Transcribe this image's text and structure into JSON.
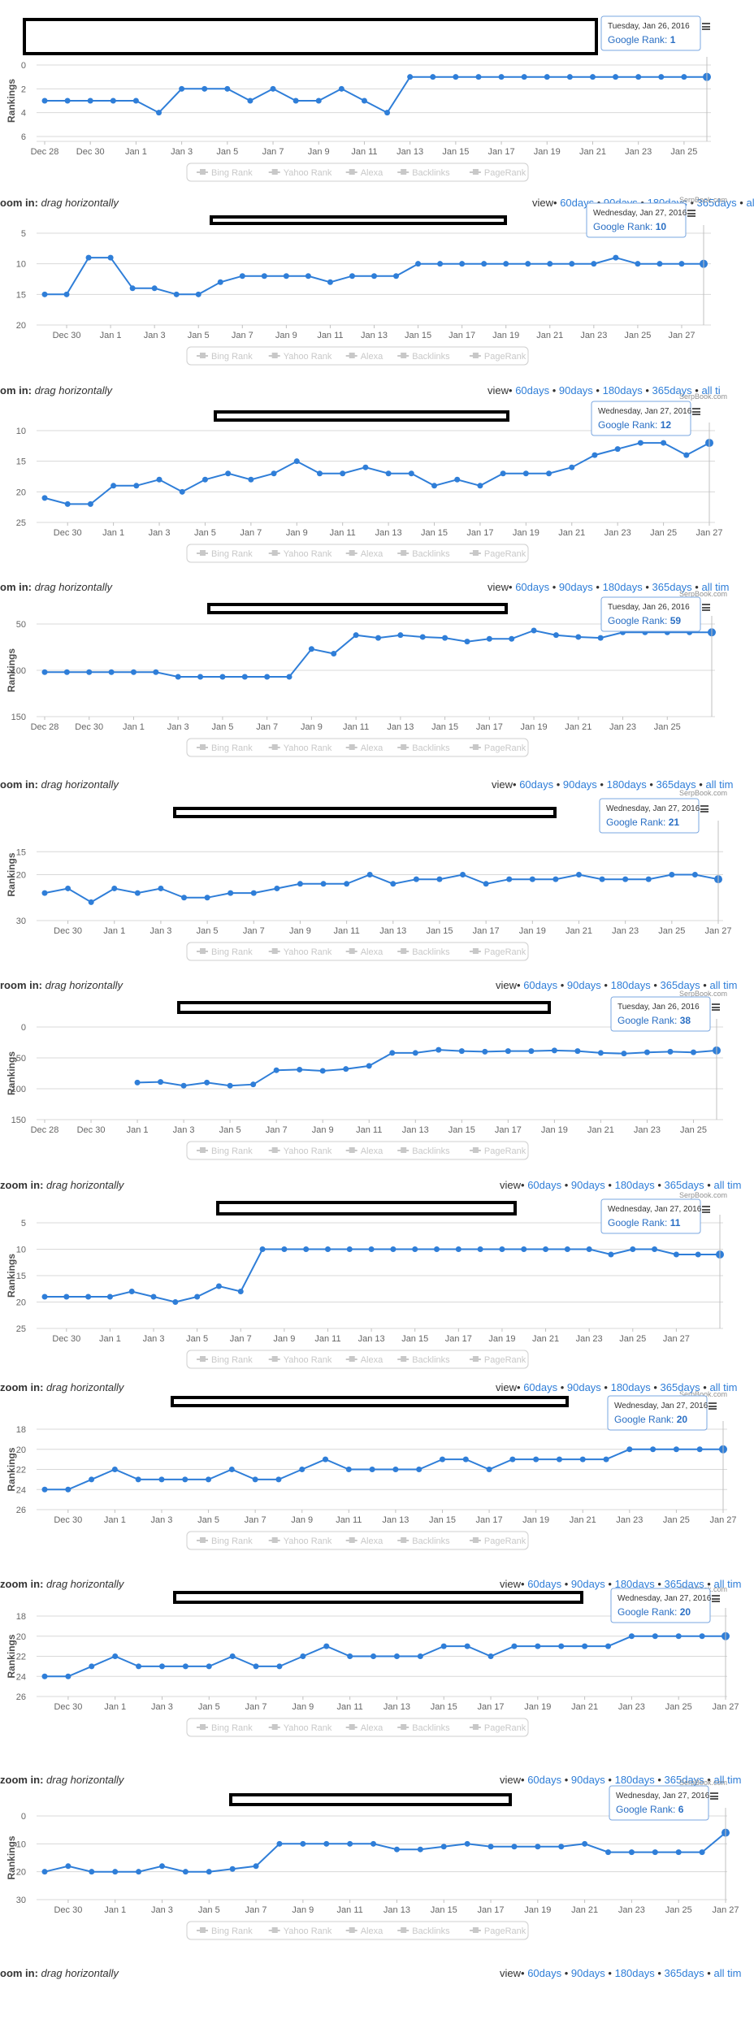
{
  "chart_data": [
    {
      "type": "line",
      "title": "",
      "yaxis_label": "Rankings",
      "ytick_labels": [
        "0",
        "2",
        "4",
        "6"
      ],
      "ylim": [
        0,
        6
      ],
      "reversed": true,
      "xtick_labels": [
        "Dec 28",
        "Dec 30",
        "Jan 1",
        "Jan 3",
        "Jan 5",
        "Jan 7",
        "Jan 9",
        "Jan 11",
        "Jan 13",
        "Jan 15",
        "Jan 17",
        "Jan 19",
        "Jan 21",
        "Jan 23",
        "Jan 25"
      ],
      "x_start": "Dec 28",
      "series": [
        {
          "name": "Google Rank",
          "values": [
            3,
            3,
            3,
            3,
            3,
            4,
            2,
            2,
            2,
            3,
            2,
            3,
            3,
            2,
            3,
            4,
            1,
            1,
            1,
            1,
            1,
            1,
            1,
            1,
            1,
            1,
            1,
            1,
            1,
            1
          ]
        }
      ],
      "tooltip": {
        "date": "Tuesday, Jan 26, 2016",
        "label": "Google Rank:",
        "value": "1"
      },
      "legend": [
        "Bing Rank",
        "Yahoo Rank",
        "Alexa",
        "Backlinks",
        "PageRank"
      ],
      "legend_position": "bottom",
      "credit": ""
    },
    {
      "type": "line",
      "title": "",
      "yaxis_label": "",
      "ytick_labels": [
        "5",
        "10",
        "15",
        "20"
      ],
      "ylim": [
        5,
        20
      ],
      "reversed": true,
      "xtick_labels": [
        "Dec 30",
        "Jan 1",
        "Jan 3",
        "Jan 5",
        "Jan 7",
        "Jan 9",
        "Jan 11",
        "Jan 13",
        "Jan 15",
        "Jan 17",
        "Jan 19",
        "Jan 21",
        "Jan 23",
        "Jan 25",
        "Jan 27"
      ],
      "x_start": "Dec 29",
      "series": [
        {
          "name": "Google Rank",
          "values": [
            15,
            15,
            9,
            9,
            14,
            14,
            15,
            15,
            13,
            12,
            12,
            12,
            12,
            13,
            12,
            12,
            12,
            10,
            10,
            10,
            10,
            10,
            10,
            10,
            10,
            10,
            9,
            10,
            10,
            10,
            10
          ]
        }
      ],
      "tooltip": {
        "date": "Wednesday, Jan 27, 2016",
        "label": "Google Rank:",
        "value": "10"
      },
      "legend": [
        "Bing Rank",
        "Yahoo Rank",
        "Alexa",
        "Backlinks",
        "PageRank"
      ],
      "legend_position": "bottom",
      "credit": "SerpBook.com"
    },
    {
      "type": "line",
      "title": "",
      "yaxis_label": "",
      "ytick_labels": [
        "10",
        "15",
        "20",
        "25"
      ],
      "ylim": [
        10,
        25
      ],
      "reversed": true,
      "xtick_labels": [
        "Dec 30",
        "Jan 1",
        "Jan 3",
        "Jan 5",
        "Jan 7",
        "Jan 9",
        "Jan 11",
        "Jan 13",
        "Jan 15",
        "Jan 17",
        "Jan 19",
        "Jan 21",
        "Jan 23",
        "Jan 25",
        "Jan 27"
      ],
      "x_start": "Dec 29",
      "series": [
        {
          "name": "Google Rank",
          "values": [
            21,
            22,
            22,
            19,
            19,
            18,
            20,
            18,
            17,
            18,
            17,
            15,
            17,
            17,
            16,
            17,
            17,
            19,
            18,
            19,
            17,
            17,
            17,
            16,
            14,
            13,
            12,
            12,
            14,
            12
          ]
        }
      ],
      "tooltip": {
        "date": "Wednesday, Jan 27, 2016",
        "label": "Google Rank:",
        "value": "12"
      },
      "legend": [
        "Bing Rank",
        "Yahoo Rank",
        "Alexa",
        "Backlinks",
        "PageRank"
      ],
      "legend_position": "bottom",
      "credit": "SerpBook.com"
    },
    {
      "type": "line",
      "title": "",
      "yaxis_label": "Rankings",
      "ytick_labels": [
        "50",
        "100",
        "150"
      ],
      "ylim": [
        50,
        150
      ],
      "reversed": true,
      "xtick_labels": [
        "Dec 28",
        "Dec 30",
        "Jan 1",
        "Jan 3",
        "Jan 5",
        "Jan 7",
        "Jan 9",
        "Jan 11",
        "Jan 13",
        "Jan 15",
        "Jan 17",
        "Jan 19",
        "Jan 21",
        "Jan 23",
        "Jan 25"
      ],
      "x_start": "Dec 28",
      "series": [
        {
          "name": "Google Rank",
          "values": [
            102,
            102,
            102,
            102,
            102,
            102,
            107,
            107,
            107,
            107,
            107,
            107,
            77,
            82,
            62,
            65,
            62,
            64,
            65,
            69,
            66,
            66,
            57,
            62,
            64,
            65,
            59,
            59,
            59,
            59,
            59
          ]
        }
      ],
      "tooltip": {
        "date": "Tuesday, Jan 26, 2016",
        "label": "Google Rank:",
        "value": "59"
      },
      "legend": [
        "Bing Rank",
        "Yahoo Rank",
        "Alexa",
        "Backlinks",
        "PageRank"
      ],
      "legend_position": "bottom",
      "credit": "SerpBook.com"
    },
    {
      "type": "line",
      "title": "",
      "yaxis_label": "Rankings",
      "ytick_labels": [
        "15",
        "20",
        "30"
      ],
      "ylim": [
        10,
        30
      ],
      "reversed": true,
      "xtick_labels": [
        "Dec 30",
        "Jan 1",
        "Jan 3",
        "Jan 5",
        "Jan 7",
        "Jan 9",
        "Jan 11",
        "Jan 13",
        "Jan 15",
        "Jan 17",
        "Jan 19",
        "Jan 21",
        "Jan 23",
        "Jan 25",
        "Jan 27"
      ],
      "x_start": "Dec 29",
      "series": [
        {
          "name": "Google Rank",
          "values": [
            24,
            23,
            26,
            23,
            24,
            23,
            25,
            25,
            24,
            24,
            23,
            22,
            22,
            22,
            20,
            22,
            21,
            21,
            20,
            22,
            21,
            21,
            21,
            20,
            21,
            21,
            21,
            20,
            20,
            21
          ]
        }
      ],
      "tooltip": {
        "date": "Wednesday, Jan 27, 2016",
        "label": "Google Rank:",
        "value": "21"
      },
      "legend": [
        "Bing Rank",
        "Yahoo Rank",
        "Alexa",
        "Backlinks",
        "PageRank"
      ],
      "legend_position": "bottom",
      "credit": "SerpBook.com"
    },
    {
      "type": "line",
      "title": "",
      "yaxis_label": "Rankings",
      "ytick_labels": [
        "0",
        "50",
        "100",
        "150"
      ],
      "ylim": [
        0,
        150
      ],
      "reversed": true,
      "xtick_labels": [
        "Dec 28",
        "Dec 30",
        "Jan 1",
        "Jan 3",
        "Jan 5",
        "Jan 7",
        "Jan 9",
        "Jan 11",
        "Jan 13",
        "Jan 15",
        "Jan 17",
        "Jan 19",
        "Jan 21",
        "Jan 23",
        "Jan 25"
      ],
      "x_start": "Dec 28",
      "series": [
        {
          "name": "Google Rank",
          "values": [
            null,
            null,
            null,
            null,
            90,
            89,
            95,
            90,
            95,
            93,
            70,
            69,
            71,
            68,
            63,
            42,
            42,
            37,
            39,
            40,
            39,
            39,
            38,
            39,
            42,
            43,
            41,
            40,
            41,
            38
          ]
        }
      ],
      "tooltip": {
        "date": "Tuesday, Jan 26, 2016",
        "label": "Google Rank:",
        "value": "38"
      },
      "legend": [
        "Bing Rank",
        "Yahoo Rank",
        "Alexa",
        "Backlinks",
        "PageRank"
      ],
      "legend_position": "bottom",
      "credit": "SerpBook.com"
    },
    {
      "type": "line",
      "title": "",
      "yaxis_label": "Rankings",
      "ytick_labels": [
        "5",
        "10",
        "15",
        "20",
        "25"
      ],
      "ylim": [
        5,
        25
      ],
      "reversed": true,
      "xtick_labels": [
        "Dec 30",
        "Jan 1",
        "Jan 3",
        "Jan 5",
        "Jan 7",
        "Jan 9",
        "Jan 11",
        "Jan 13",
        "Jan 15",
        "Jan 17",
        "Jan 19",
        "Jan 21",
        "Jan 23",
        "Jan 25",
        "Jan 27"
      ],
      "x_start": "Dec 29",
      "series": [
        {
          "name": "Google Rank",
          "values": [
            19,
            19,
            19,
            19,
            18,
            19,
            20,
            19,
            17,
            18,
            10,
            10,
            10,
            10,
            10,
            10,
            10,
            10,
            10,
            10,
            10,
            10,
            10,
            10,
            10,
            10,
            11,
            10,
            10,
            11,
            11,
            11
          ]
        }
      ],
      "tooltip": {
        "date": "Wednesday, Jan 27, 2016",
        "label": "Google Rank:",
        "value": "11"
      },
      "legend": [
        "Bing Rank",
        "Yahoo Rank",
        "Alexa",
        "Backlinks",
        "PageRank"
      ],
      "legend_position": "bottom",
      "credit": "SerpBook.com"
    },
    {
      "type": "line",
      "title": "",
      "yaxis_label": "Rankings",
      "ytick_labels": [
        "18",
        "20",
        "22",
        "24",
        "26"
      ],
      "ylim": [
        18,
        26
      ],
      "reversed": true,
      "xtick_labels": [
        "Dec 30",
        "Jan 1",
        "Jan 3",
        "Jan 5",
        "Jan 7",
        "Jan 9",
        "Jan 11",
        "Jan 13",
        "Jan 15",
        "Jan 17",
        "Jan 19",
        "Jan 21",
        "Jan 23",
        "Jan 25",
        "Jan 27"
      ],
      "x_start": "Dec 29",
      "series": [
        {
          "name": "Google Rank",
          "values": [
            24,
            24,
            23,
            22,
            23,
            23,
            23,
            23,
            22,
            23,
            23,
            22,
            21,
            22,
            22,
            22,
            22,
            21,
            21,
            22,
            21,
            21,
            21,
            21,
            21,
            20,
            20,
            20,
            20,
            20
          ]
        }
      ],
      "tooltip": {
        "date": "Wednesday, Jan 27, 2016",
        "label": "Google Rank:",
        "value": "20"
      },
      "legend": [
        "Bing Rank",
        "Yahoo Rank",
        "Alexa",
        "Backlinks",
        "PageRank"
      ],
      "legend_position": "bottom",
      "credit": "SerpBook.com"
    },
    {
      "type": "line",
      "title": "",
      "yaxis_label": "Rankings",
      "ytick_labels": [
        "18",
        "20",
        "22",
        "24",
        "26"
      ],
      "ylim": [
        18,
        26
      ],
      "reversed": true,
      "xtick_labels": [
        "Dec 30",
        "Jan 1",
        "Jan 3",
        "Jan 5",
        "Jan 7",
        "Jan 9",
        "Jan 11",
        "Jan 13",
        "Jan 15",
        "Jan 17",
        "Jan 19",
        "Jan 21",
        "Jan 23",
        "Jan 25",
        "Jan 27"
      ],
      "x_start": "Dec 29",
      "series": [
        {
          "name": "Google Rank",
          "values": [
            24,
            24,
            23,
            22,
            23,
            23,
            23,
            23,
            22,
            23,
            23,
            22,
            21,
            22,
            22,
            22,
            22,
            21,
            21,
            22,
            21,
            21,
            21,
            21,
            21,
            20,
            20,
            20,
            20,
            20
          ]
        }
      ],
      "tooltip": {
        "date": "Wednesday, Jan 27, 2016",
        "label": "Google Rank:",
        "value": "20"
      },
      "legend": [
        "Bing Rank",
        "Yahoo Rank",
        "Alexa",
        "Backlinks",
        "PageRank"
      ],
      "legend_position": "bottom",
      "credit": "SerpBook.com"
    },
    {
      "type": "line",
      "title": "",
      "yaxis_label": "Rankings",
      "ytick_labels": [
        "0",
        "10",
        "20",
        "30"
      ],
      "ylim": [
        0,
        30
      ],
      "reversed": true,
      "xtick_labels": [
        "Dec 30",
        "Jan 1",
        "Jan 3",
        "Jan 5",
        "Jan 7",
        "Jan 9",
        "Jan 11",
        "Jan 13",
        "Jan 15",
        "Jan 17",
        "Jan 19",
        "Jan 21",
        "Jan 23",
        "Jan 25",
        "Jan 27"
      ],
      "x_start": "Dec 29",
      "series": [
        {
          "name": "Google Rank",
          "values": [
            20,
            18,
            20,
            20,
            20,
            18,
            20,
            20,
            19,
            18,
            10,
            10,
            10,
            10,
            10,
            12,
            12,
            11,
            10,
            11,
            11,
            11,
            11,
            10,
            13,
            13,
            13,
            13,
            13,
            6
          ]
        }
      ],
      "tooltip": {
        "date": "Wednesday, Jan 27, 2016",
        "label": "Google Rank:",
        "value": "6"
      },
      "legend": [
        "Bing Rank",
        "Yahoo Rank",
        "Alexa",
        "Backlinks",
        "PageRank"
      ],
      "legend_position": "bottom",
      "credit": "SerpBook.com"
    }
  ],
  "zoom_rows": [
    {
      "lead": "oom in:",
      "drag": "drag horizontally",
      "view": "view",
      "links": [
        "60days",
        "90days",
        "180days",
        "365days",
        "all ti"
      ]
    },
    {
      "lead": "om in:",
      "drag": "drag horizontally",
      "view": "view",
      "links": [
        "60days",
        "90days",
        "180days",
        "365days",
        "all ti"
      ]
    },
    {
      "lead": "om in:",
      "drag": "drag horizontally",
      "view": "view",
      "links": [
        "60days",
        "90days",
        "180days",
        "365days",
        "all tim"
      ]
    },
    {
      "lead": "oom in:",
      "drag": "drag horizontally",
      "view": "view",
      "links": [
        "60days",
        "90days",
        "180days",
        "365days",
        "all tim"
      ]
    },
    {
      "lead": "room in:",
      "drag": "drag horizontally",
      "view": "view",
      "links": [
        "60days",
        "90days",
        "180days",
        "365days",
        "all tim"
      ]
    },
    {
      "lead": "zoom in:",
      "drag": "drag horizontally",
      "view": "view",
      "links": [
        "60days",
        "90days",
        "180days",
        "365days",
        "all tim"
      ]
    },
    {
      "lead": "zoom in:",
      "drag": "drag horizontally",
      "view": "view",
      "links": [
        "60days",
        "90days",
        "180days",
        "365days",
        "all tim"
      ]
    },
    {
      "lead": "zoom in:",
      "drag": "drag horizontally",
      "view": "view",
      "links": [
        "60days",
        "90days",
        "180days",
        "365days",
        "all tim"
      ]
    },
    {
      "lead": "zoom in:",
      "drag": "drag horizontally",
      "view": "view",
      "links": [
        "60days",
        "90days",
        "180days",
        "365days",
        "all tim"
      ]
    },
    {
      "lead": "oom in:",
      "drag": "drag horizontally",
      "view": "view",
      "links": [
        "60days",
        "90days",
        "180days",
        "365days",
        "all tim"
      ]
    }
  ],
  "colors": {
    "series": "#2f7ed8",
    "link": "#2f7ed8",
    "grid": "#d8d8d8",
    "legend_inactive": "#c8c8c8"
  }
}
